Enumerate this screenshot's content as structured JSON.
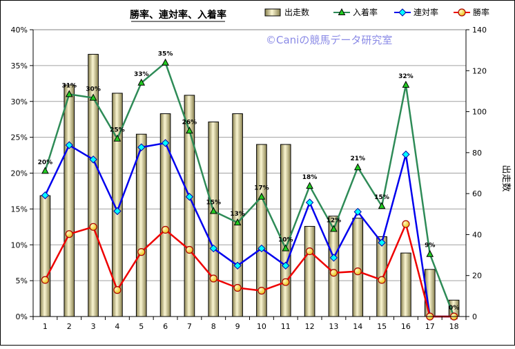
{
  "chart_data": {
    "type": "bar+line",
    "title": "勝率、連対率、入着率",
    "watermark": "©Caniの競馬データ研究室",
    "categories": [
      "1",
      "2",
      "3",
      "4",
      "5",
      "6",
      "7",
      "8",
      "9",
      "10",
      "11",
      "12",
      "13",
      "14",
      "15",
      "16",
      "17",
      "18"
    ],
    "y_left": {
      "ylim": [
        0,
        40
      ],
      "ticks": [
        "0%",
        "5%",
        "10%",
        "15%",
        "20%",
        "25%",
        "30%",
        "35%",
        "40%"
      ]
    },
    "y_right": {
      "label": "出走数",
      "ylim": [
        0,
        140
      ],
      "ticks": [
        "0",
        "20",
        "40",
        "60",
        "80",
        "100",
        "120",
        "140"
      ]
    },
    "bar_series": {
      "name": "出走数",
      "color": "#ece4a8",
      "values": [
        59,
        113,
        128,
        109,
        89,
        99,
        108,
        95,
        99,
        84,
        84,
        44,
        49,
        48,
        39,
        31,
        23,
        8
      ]
    },
    "line_series": [
      {
        "name": "入着率",
        "color": "#2e8b57",
        "marker_color": "#22cc22",
        "marker": "triangle",
        "values": [
          20.3,
          31.0,
          30.5,
          24.8,
          32.6,
          35.4,
          25.9,
          14.7,
          13.1,
          16.7,
          9.5,
          18.2,
          12.2,
          20.8,
          15.4,
          32.3,
          8.7,
          0
        ],
        "labels": [
          "20%",
          "31%",
          "30%",
          "25%",
          "33%",
          "35%",
          "26%",
          "15%",
          "13%",
          "17%",
          "10%",
          "18%",
          "12%",
          "21%",
          "15%",
          "32%",
          "9%",
          "0%"
        ]
      },
      {
        "name": "連対率",
        "color": "#0000ee",
        "marker_color": "#00ffff",
        "marker": "diamond",
        "values": [
          16.9,
          23.9,
          21.9,
          14.7,
          23.6,
          24.2,
          16.7,
          9.5,
          7.1,
          9.5,
          7.1,
          15.9,
          8.2,
          14.6,
          10.3,
          22.6,
          0,
          0
        ]
      },
      {
        "name": "勝率",
        "color": "#ee0000",
        "marker_color": "#ffd700",
        "marker": "circle",
        "values": [
          5.1,
          11.5,
          12.5,
          3.7,
          9.0,
          12.1,
          9.3,
          5.3,
          4.0,
          3.6,
          4.8,
          9.1,
          6.1,
          6.3,
          5.1,
          12.9,
          0,
          0
        ]
      }
    ],
    "legend": {
      "placement": "top-right",
      "items": [
        "出走数",
        "入着率",
        "連対率",
        "勝率"
      ]
    },
    "grid": true
  }
}
